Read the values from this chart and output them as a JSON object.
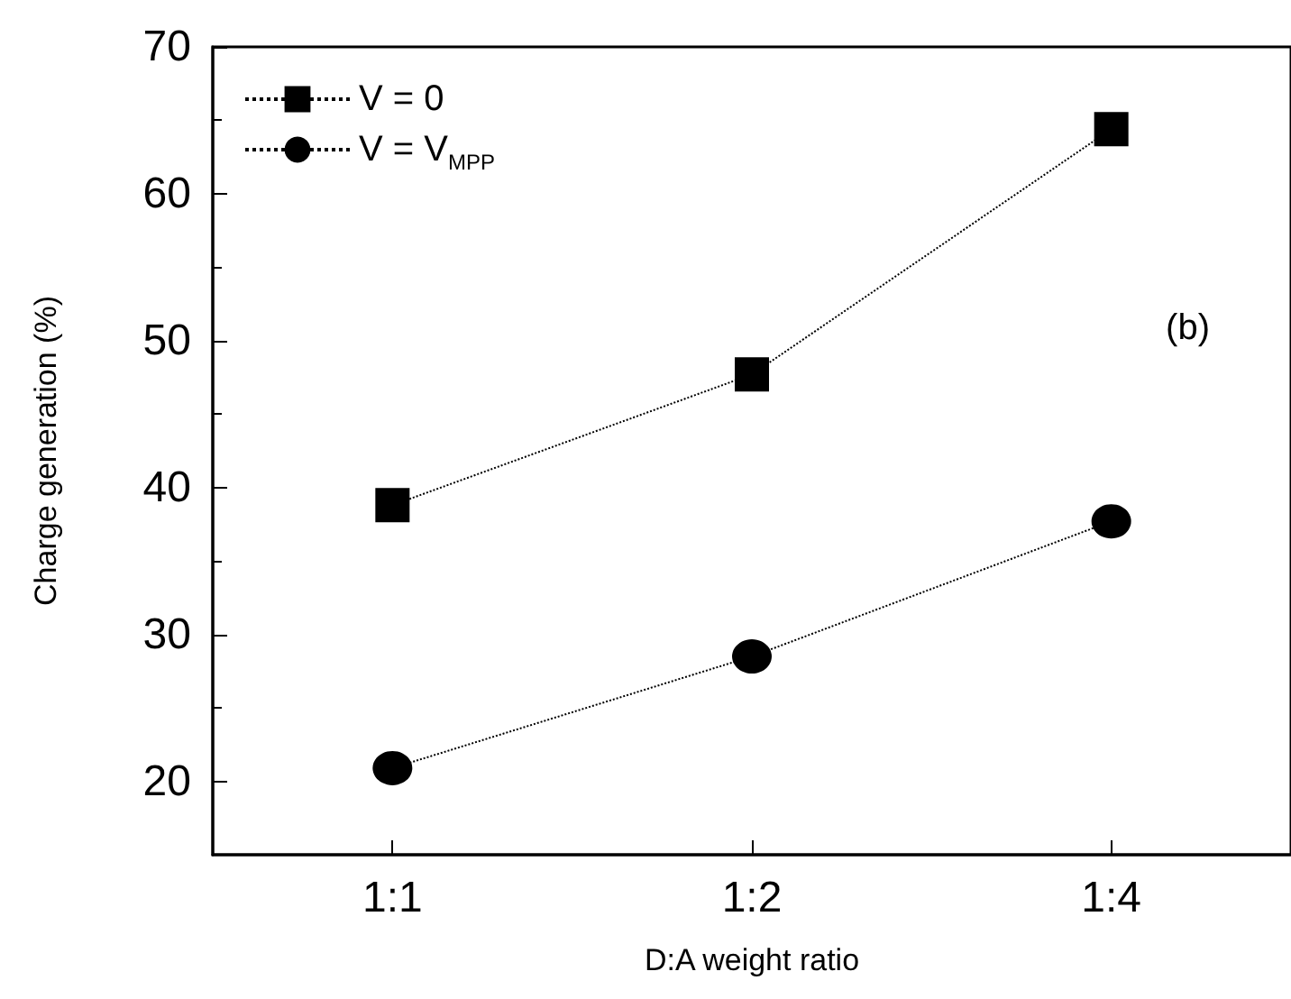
{
  "chart_data": {
    "type": "line",
    "xlabel": "D:A weight ratio",
    "ylabel": "Charge generation (%)",
    "categories": [
      "1:1",
      "1:2",
      "1:4"
    ],
    "series": [
      {
        "name": "V = 0",
        "color": "#000000",
        "marker": "square",
        "values": [
          38.8,
          47.7,
          64.4
        ]
      },
      {
        "name": "V = V$_{MPP}$",
        "color": "#000000",
        "marker": "circle",
        "values": [
          20.9,
          28.5,
          37.7
        ]
      }
    ],
    "ylim": [
      15,
      70
    ],
    "yticks": [
      20,
      30,
      40,
      50,
      60,
      70
    ],
    "grid": false,
    "legend": "top left",
    "line_style": "dotted",
    "annotations": [
      "(b)"
    ]
  }
}
